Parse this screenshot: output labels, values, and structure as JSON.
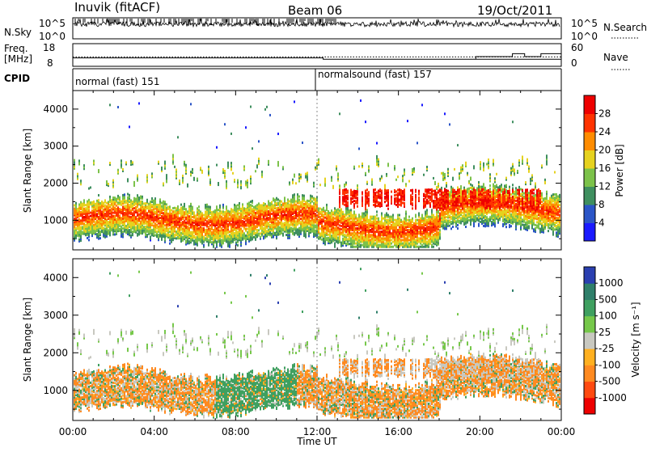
{
  "header": {
    "station": "Inuvik (fitACF)",
    "beam": "Beam 06",
    "date": "19/Oct/2011"
  },
  "nsky_panel": {
    "left_label": "N.Sky",
    "right_label": "N.Search",
    "y_ticks": [
      "10^5",
      "10^0"
    ],
    "right_ticks": [
      "10^5",
      "10^0"
    ]
  },
  "freq_panel": {
    "left_label_line1": "Freq.",
    "left_label_line2": "[MHz]",
    "right_label": "Nave",
    "y_ticks": [
      18,
      8
    ],
    "right_ticks": [
      60,
      0
    ]
  },
  "cpid_panel": {
    "label": "CPID",
    "modes": [
      {
        "name": "normal (fast) 151",
        "start_hour": 0
      },
      {
        "name": "normalsound (fast) 157",
        "start_hour": 12
      }
    ]
  },
  "chart_data": [
    {
      "type": "heatmap",
      "name": "power",
      "ylabel": "Slant Range [km]",
      "y_ticks": [
        1000,
        2000,
        3000,
        4000
      ],
      "ylim": [
        200,
        4500
      ],
      "xlim": [
        0,
        24
      ],
      "colorbar_label": "Power [dB]",
      "colorbar_ticks": [
        4,
        8,
        12,
        16,
        20,
        24,
        28
      ],
      "colorbar_colors": [
        "#1a1aff",
        "#2b55c7",
        "#3f8f5f",
        "#7cc24a",
        "#e6d21f",
        "#ff8c00",
        "#ff3300",
        "#ee0000"
      ]
    },
    {
      "type": "heatmap",
      "name": "velocity",
      "ylabel": "Slant Range [km]",
      "y_ticks": [
        1000,
        2000,
        3000,
        4000
      ],
      "ylim": [
        200,
        4500
      ],
      "xlim": [
        0,
        24
      ],
      "xlabel": "Time UT",
      "x_tick_labels": [
        "00:00",
        "04:00",
        "08:00",
        "12:00",
        "16:00",
        "20:00",
        "00:00"
      ],
      "colorbar_label": "Velocity [m s⁻¹]",
      "colorbar_ticks": [
        "1000",
        "500",
        "100",
        "25",
        "-25",
        "-100",
        "-500",
        "-1000"
      ],
      "colorbar_colors": [
        "#2a3fb0",
        "#2f7f6a",
        "#3fa060",
        "#76c84a",
        "#c8c8c0",
        "#ffb020",
        "#ff8a20",
        "#ff4a10",
        "#ee0000"
      ]
    }
  ]
}
